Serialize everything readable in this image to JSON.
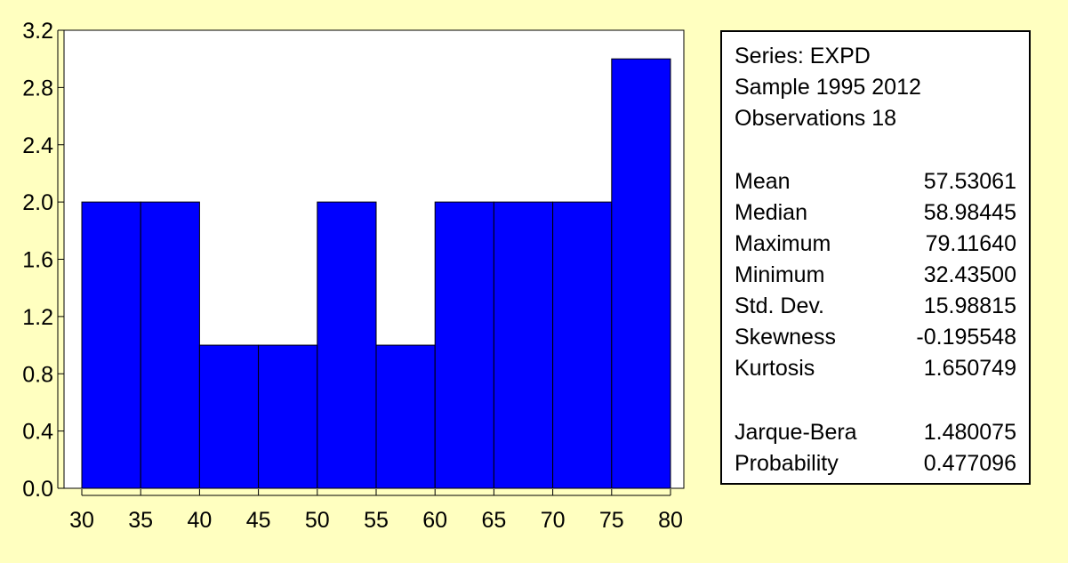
{
  "chart_data": {
    "type": "bar",
    "bins": [
      {
        "from": 30,
        "to": 35,
        "count": 2
      },
      {
        "from": 35,
        "to": 40,
        "count": 2
      },
      {
        "from": 40,
        "to": 45,
        "count": 1
      },
      {
        "from": 45,
        "to": 50,
        "count": 1
      },
      {
        "from": 50,
        "to": 55,
        "count": 2
      },
      {
        "from": 55,
        "to": 60,
        "count": 1
      },
      {
        "from": 60,
        "to": 65,
        "count": 2
      },
      {
        "from": 65,
        "to": 70,
        "count": 2
      },
      {
        "from": 70,
        "to": 75,
        "count": 2
      },
      {
        "from": 75,
        "to": 80,
        "count": 3
      }
    ],
    "xlim": [
      30,
      80
    ],
    "ylim": [
      0,
      3.2
    ],
    "x_ticks": [
      "30",
      "35",
      "40",
      "45",
      "50",
      "55",
      "60",
      "65",
      "70",
      "75",
      "80"
    ],
    "y_ticks": [
      "0.0",
      "0.4",
      "0.8",
      "1.2",
      "1.6",
      "2.0",
      "2.4",
      "2.8",
      "3.2"
    ],
    "grid": false,
    "bar_color": "#0000ff"
  },
  "summary": {
    "series_line": "Series: EXPD",
    "sample_line": "Sample 1995 2012",
    "observations_line": "Observations 18",
    "stats": [
      {
        "name": "Mean",
        "value": "57.53061"
      },
      {
        "name": "Median",
        "value": "58.98445"
      },
      {
        "name": "Maximum",
        "value": "79.11640"
      },
      {
        "name": "Minimum",
        "value": "32.43500"
      },
      {
        "name": "Std. Dev.",
        "value": "15.98815"
      },
      {
        "name": "Skewness",
        "value": "-0.195548"
      },
      {
        "name": "Kurtosis",
        "value": "1.650749"
      },
      {
        "name": "Jarque-Bera",
        "value": "1.480075"
      },
      {
        "name": "Probability",
        "value": "0.477096"
      }
    ]
  },
  "colors": {
    "background": "#ffffc0",
    "plot_background": "#ffffff",
    "bar": "#0000ff"
  }
}
